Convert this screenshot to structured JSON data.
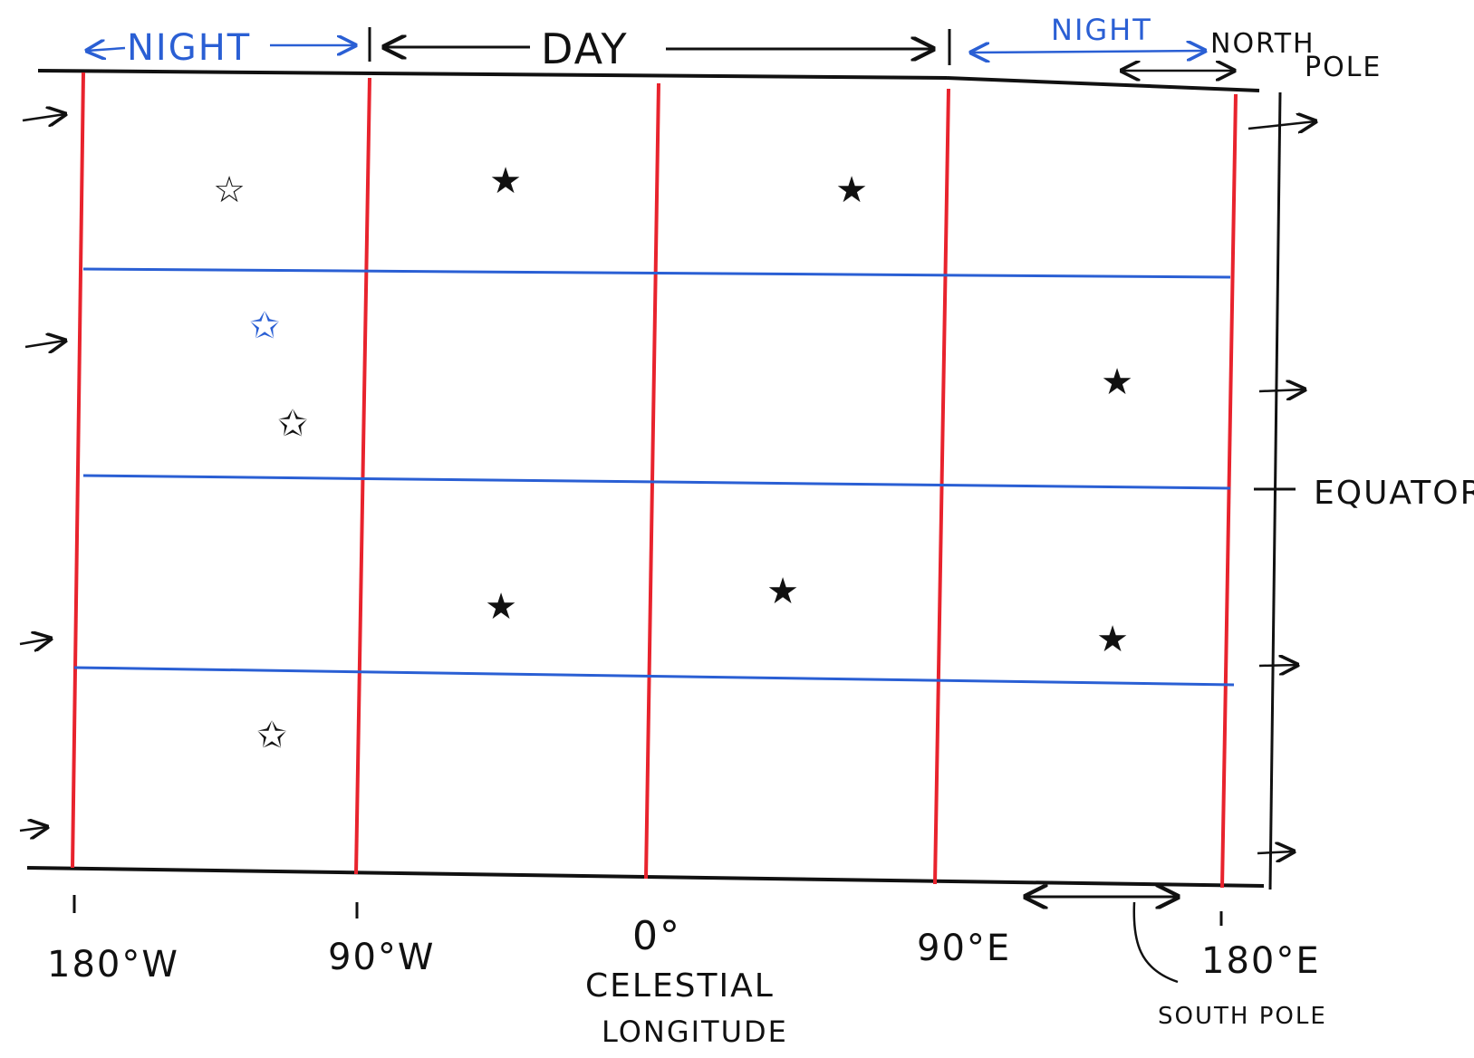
{
  "top_labels": {
    "night_left": "NIGHT",
    "day": "DAY",
    "night_right": "NIGHT",
    "north_pole_line1": "NORTH",
    "north_pole_line2": "POLE"
  },
  "right_labels": {
    "equator": "EQUATOR"
  },
  "bottom_labels": {
    "lon_180w": "180°W",
    "lon_90w": "90°W",
    "lon_0": "0°",
    "celestial_line1": "CELESTIAL",
    "celestial_line2": "LONGITUDE",
    "lon_90e": "90°E",
    "lon_180e": "180°E",
    "south_pole": "SOUTH POLE"
  },
  "colors": {
    "meridian": "#e8232d",
    "parallel": "#2a5fd4",
    "ink": "#111111",
    "highlight_star": "#2a5fd4"
  },
  "stars": [
    {
      "id": "star-1",
      "color": "#111111"
    },
    {
      "id": "star-2",
      "color": "#111111"
    },
    {
      "id": "star-3",
      "color": "#111111"
    },
    {
      "id": "star-4",
      "color": "#2a5fd4"
    },
    {
      "id": "star-5",
      "color": "#111111"
    },
    {
      "id": "star-6",
      "color": "#111111"
    },
    {
      "id": "star-7",
      "color": "#111111"
    },
    {
      "id": "star-8",
      "color": "#111111"
    },
    {
      "id": "star-9",
      "color": "#111111"
    },
    {
      "id": "star-10",
      "color": "#111111"
    }
  ]
}
